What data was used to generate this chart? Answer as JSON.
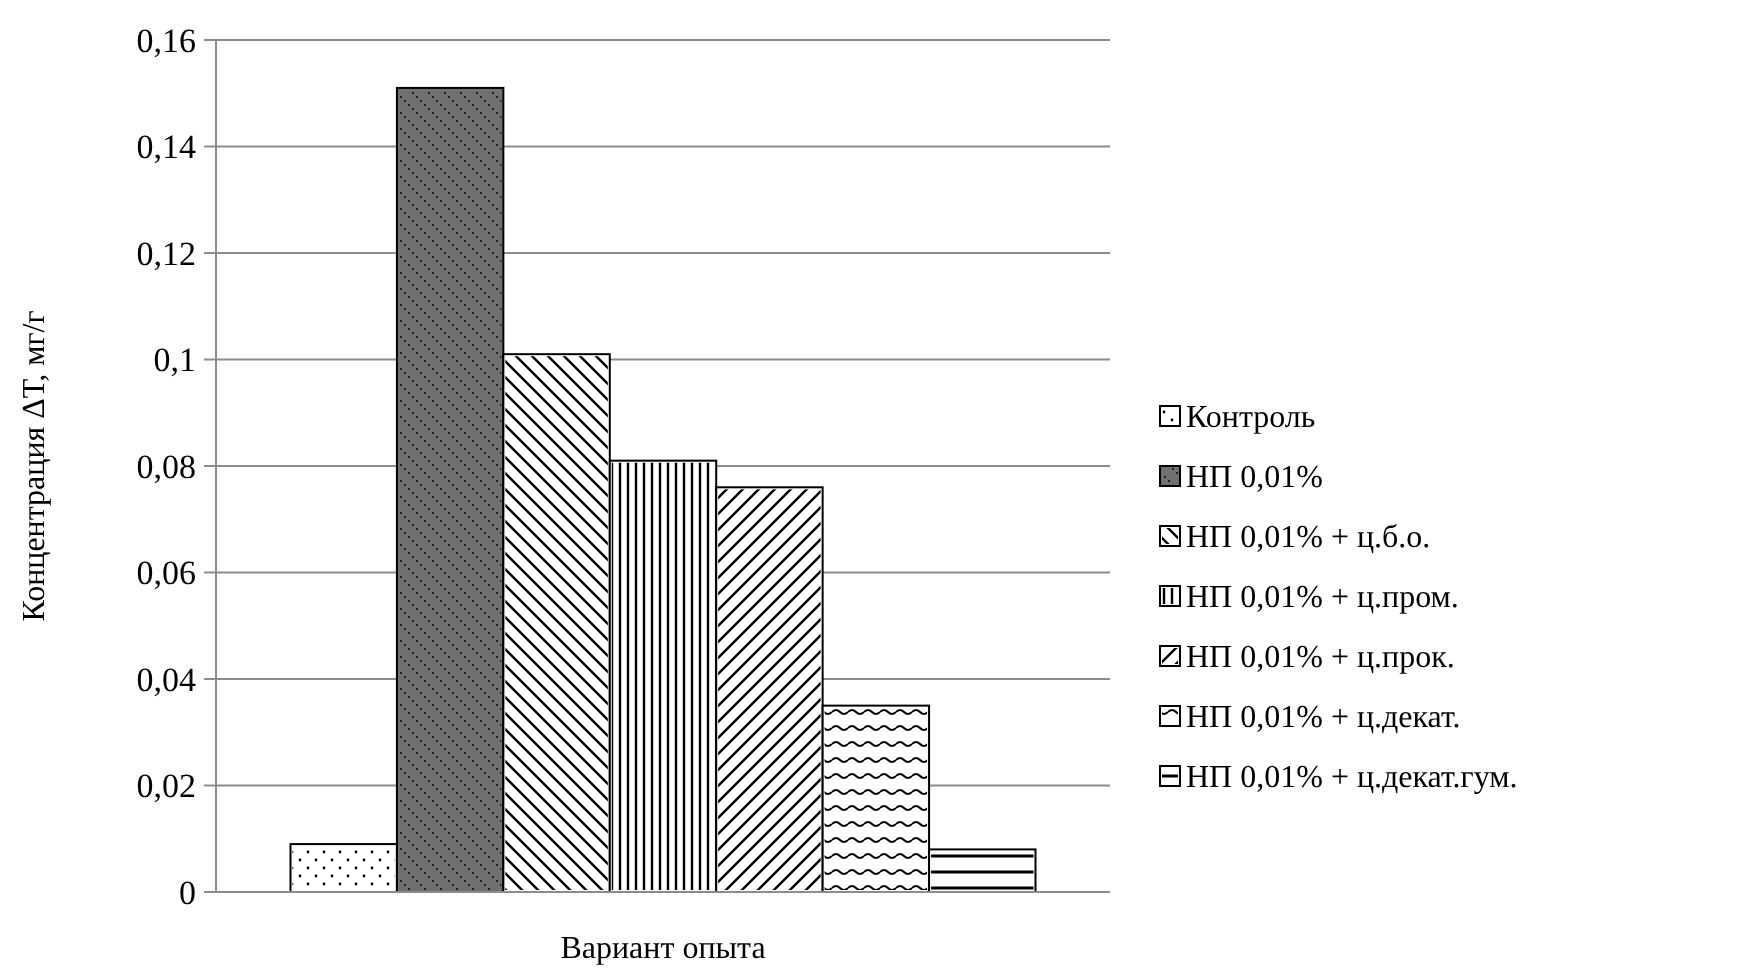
{
  "chart_data": {
    "type": "bar",
    "xlabel": "Вариант опыта",
    "ylabel": "Концентрация ΔТ, мг/г",
    "categories": [
      null
    ],
    "series": [
      {
        "name": "Контроль",
        "color": "#ffffff",
        "values": [
          0.009
        ]
      },
      {
        "name": "НП 0,01%",
        "color": "#707070",
        "values": [
          0.151
        ]
      },
      {
        "name": "НП 0,01% + ц.б.о.",
        "color": "#ffffff",
        "values": [
          0.101
        ]
      },
      {
        "name": "НП 0,01% + ц.пром.",
        "color": "#ffffff",
        "values": [
          0.081
        ]
      },
      {
        "name": "НП 0,01% + ц.прок.",
        "color": "#ffffff",
        "values": [
          0.076
        ]
      },
      {
        "name": "НП 0,01% + ц.декат.",
        "color": "#ffffff",
        "values": [
          0.035
        ]
      },
      {
        "name": "НП 0,01% + ц.декат.гум.",
        "color": "#ffffff",
        "values": [
          0.008
        ]
      }
    ],
    "ylim": [
      0,
      0.16
    ],
    "yticks": [
      {
        "value": 0,
        "label": "0"
      },
      {
        "value": 0.02,
        "label": "0,02"
      },
      {
        "value": 0.04,
        "label": "0,04"
      },
      {
        "value": 0.06,
        "label": "0,06"
      },
      {
        "value": 0.08,
        "label": "0,08"
      },
      {
        "value": 0.1,
        "label": "0,1"
      },
      {
        "value": 0.12,
        "label": "0,12"
      },
      {
        "value": 0.14,
        "label": "0,14"
      },
      {
        "value": 0.16,
        "label": "0,16"
      }
    ],
    "grid": "y",
    "legend": "right"
  }
}
